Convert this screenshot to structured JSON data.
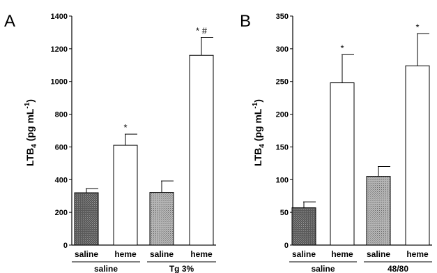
{
  "chart_data": [
    {
      "panel": "A",
      "type": "bar",
      "ylabel": {
        "main": "LTB",
        "sub": "4",
        "rest": " (pg mL",
        "sup": "-1",
        "close": ")"
      },
      "ylim": [
        0,
        1400
      ],
      "yticks": [
        0,
        200,
        400,
        600,
        800,
        1000,
        1200,
        1400
      ],
      "categories": [
        "saline",
        "heme",
        "saline",
        "heme"
      ],
      "values": [
        320,
        610,
        322,
        1160
      ],
      "errors": [
        25,
        68,
        70,
        110
      ],
      "fills": [
        "dark",
        "white",
        "light",
        "white"
      ],
      "annotations": [
        "",
        "*",
        "",
        "* #"
      ],
      "groups": [
        {
          "label": "saline",
          "bars": [
            0,
            1
          ]
        },
        {
          "label": "Tg 3%",
          "bars": [
            2,
            3
          ]
        }
      ]
    },
    {
      "panel": "B",
      "type": "bar",
      "ylabel": {
        "main": "LTB",
        "sub": "4",
        "rest": " (pg mL",
        "sup": "-1",
        "close": ")"
      },
      "ylim": [
        0,
        350
      ],
      "yticks": [
        0,
        50,
        100,
        150,
        200,
        250,
        300,
        350
      ],
      "categories": [
        "saline",
        "heme",
        "saline",
        "heme"
      ],
      "values": [
        57,
        248,
        105,
        274
      ],
      "errors": [
        9,
        43,
        15,
        49
      ],
      "fills": [
        "dark",
        "white",
        "light",
        "white"
      ],
      "annotations": [
        "",
        "*",
        "",
        "*"
      ],
      "groups": [
        {
          "label": "saline",
          "bars": [
            0,
            1
          ]
        },
        {
          "label": "48/80",
          "bars": [
            2,
            3
          ]
        }
      ]
    }
  ],
  "colors": {
    "dark_bar": "#6e6e6e",
    "light_bar": "#a9a9a9",
    "white_bar": "#ffffff",
    "stroke": "#000000"
  }
}
